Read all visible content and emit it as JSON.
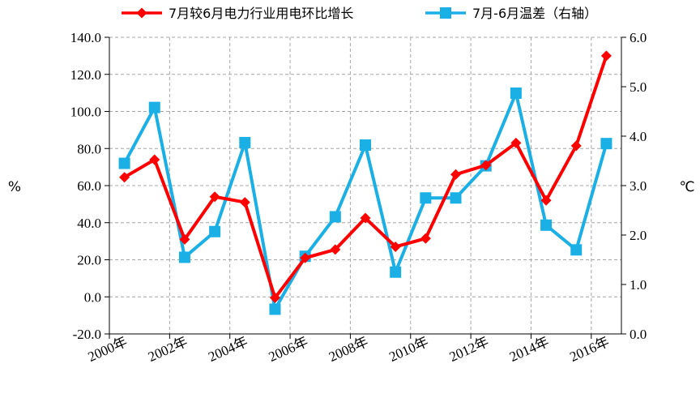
{
  "chart_data": {
    "type": "line",
    "categories": [
      "2000年",
      "2001年",
      "2002年",
      "2003年",
      "2004年",
      "2005年",
      "2006年",
      "2007年",
      "2008年",
      "2009年",
      "2010年",
      "2011年",
      "2012年",
      "2013年",
      "2014年",
      "2015年",
      "2016年"
    ],
    "x_tick_labels": [
      "2000年",
      "2002年",
      "2004年",
      "2006年",
      "2008年",
      "2010年",
      "2012年",
      "2014年",
      "2016年"
    ],
    "series": [
      {
        "name": "7月较6月电力行业用电环比增长",
        "axis": "left",
        "color": "#ff0000",
        "marker": "diamond",
        "values": [
          64.5,
          74.0,
          31.0,
          54.0,
          51.0,
          -0.5,
          21.0,
          25.5,
          42.5,
          27.0,
          31.5,
          66.0,
          71.0,
          83.0,
          52.0,
          81.5,
          130.0
        ]
      },
      {
        "name": "7月-6月温差（右轴）",
        "axis": "right",
        "color": "#1ab0e6",
        "marker": "square",
        "values": [
          3.45,
          4.58,
          1.55,
          2.07,
          3.87,
          0.5,
          1.57,
          2.37,
          3.82,
          1.25,
          2.75,
          2.75,
          3.4,
          4.87,
          2.2,
          1.7,
          3.85
        ]
      }
    ],
    "ylabel_left": "%",
    "ylabel_right": "℃",
    "ylim_left": [
      -20,
      140
    ],
    "ylim_right": [
      0,
      6
    ],
    "yticks_left": [
      "140.0",
      "120.0",
      "100.0",
      "80.0",
      "60.0",
      "40.0",
      "20.0",
      "0.0",
      "-20.0"
    ],
    "yticks_right": [
      "6.0",
      "5.0",
      "4.0",
      "3.0",
      "2.0",
      "1.0",
      "0.0"
    ],
    "grid": true,
    "grid_style": "dashed",
    "legend_position": "top"
  }
}
